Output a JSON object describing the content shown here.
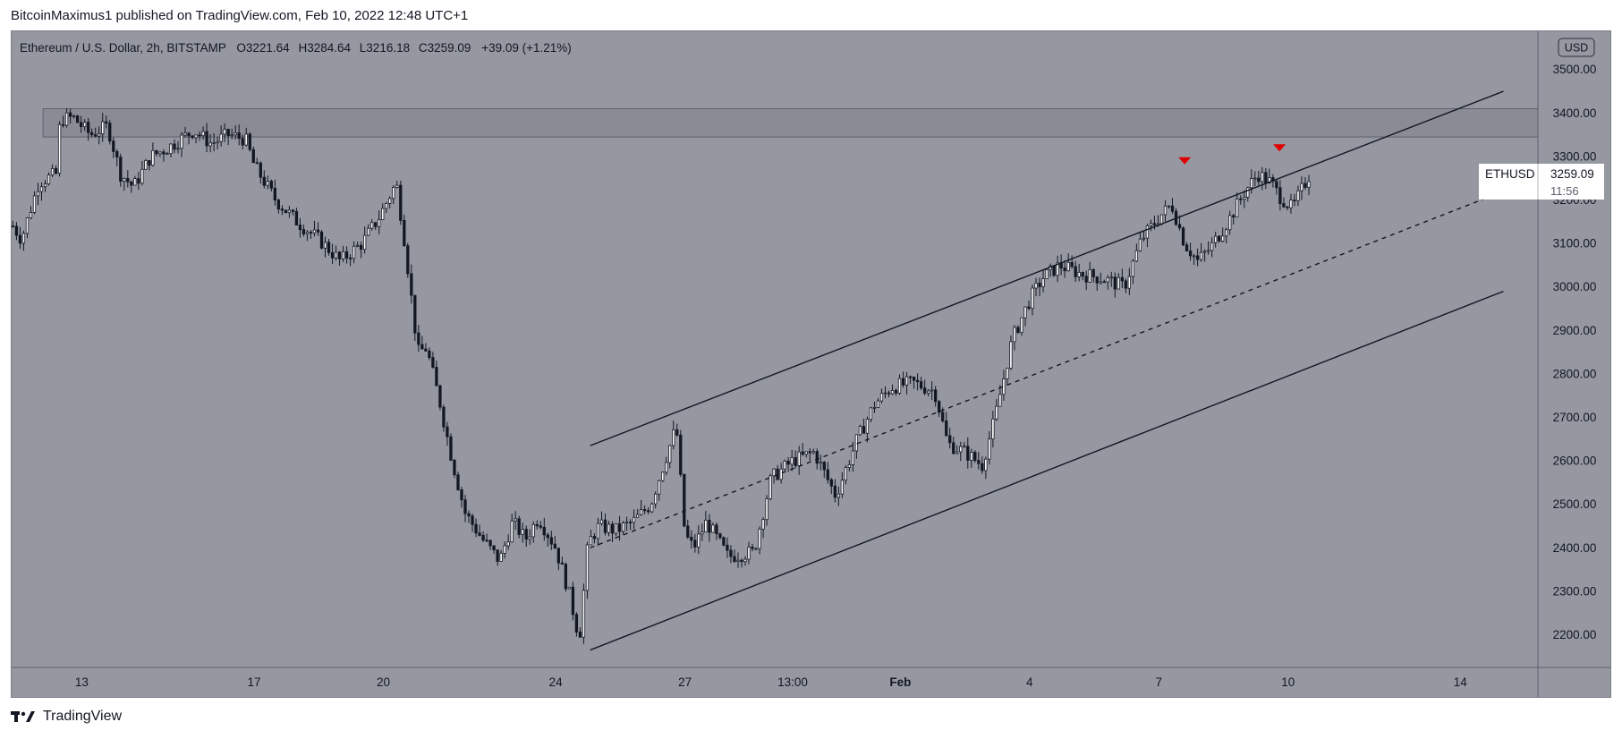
{
  "attribution": "BitcoinMaximus1 published on TradingView.com, Feb 10, 2022 12:48 UTC+1",
  "symbol_header": {
    "name": "Ethereum / U.S. Dollar, 2h, BITSTAMP",
    "o_label": "O",
    "o_value": "3221.64",
    "h_label": "H",
    "h_value": "3284.64",
    "l_label": "L",
    "l_value": "3216.18",
    "c_label": "C",
    "c_value": "3259.09",
    "change": "+39.09 (+1.21%)"
  },
  "currency_button": "USD",
  "price_label": {
    "ticker": "ETHUSD",
    "price": "3259.09",
    "countdown": "11:56"
  },
  "brand": "TradingView",
  "colors": {
    "plot_bg": "#9598a1",
    "resistance_zone": "#8a8c95",
    "line": "#131722",
    "marker": "#e00000"
  },
  "chart_data": {
    "type": "candlestick",
    "x_tick_labels": [
      "13",
      "17",
      "20",
      "24",
      "27",
      "13:00",
      "Feb",
      "4",
      "7",
      "10",
      "14"
    ],
    "x_tick_days": [
      13,
      17,
      20,
      24,
      27,
      29.5,
      32,
      35,
      38,
      41,
      45
    ],
    "y_ticks": [
      2200,
      2300,
      2400,
      2500,
      2600,
      2700,
      2800,
      2900,
      3000,
      3100,
      3200,
      3300,
      3400,
      3500
    ],
    "ylim": [
      2125,
      3590
    ],
    "xlim_days": [
      11.35,
      46.8
    ],
    "x_day_note": "days counted from Jan 1 2022 (Feb 1 = day 32)",
    "price_series_days": [
      11.4,
      11.6,
      12.0,
      12.4,
      12.5,
      12.8,
      13.2,
      13.6,
      13.9,
      14.2,
      14.6,
      15.0,
      15.3,
      15.6,
      16.0,
      16.4,
      16.8,
      17.0,
      17.5,
      18.0,
      18.5,
      19.0,
      19.5,
      19.9,
      20.3,
      20.5,
      20.8,
      21.0,
      21.3,
      21.6,
      21.9,
      22.3,
      22.7,
      23.0,
      23.3,
      23.6,
      24.0,
      24.3,
      24.55,
      24.75,
      25.0,
      25.4,
      25.8,
      26.2,
      26.6,
      26.8,
      27.0,
      27.2,
      27.5,
      28.0,
      28.6,
      29.0,
      29.5,
      30.0,
      30.5,
      31.0,
      31.4,
      31.8,
      32.3,
      32.8,
      33.1,
      33.5,
      33.9,
      34.2,
      34.6,
      35.0,
      35.3,
      35.7,
      36.2,
      36.7,
      37.2,
      37.6,
      38.0,
      38.3,
      38.6,
      38.9,
      39.2,
      39.6,
      40.0,
      40.3,
      40.6,
      40.8,
      41.1,
      41.3,
      41.5
    ],
    "price_series_values": [
      3140,
      3110,
      3240,
      3260,
      3385,
      3390,
      3350,
      3370,
      3260,
      3230,
      3300,
      3320,
      3340,
      3360,
      3330,
      3350,
      3340,
      3280,
      3200,
      3150,
      3110,
      3060,
      3100,
      3160,
      3240,
      3100,
      2850,
      2860,
      2740,
      2600,
      2480,
      2420,
      2370,
      2460,
      2420,
      2470,
      2400,
      2300,
      2190,
      2410,
      2450,
      2440,
      2460,
      2500,
      2620,
      2680,
      2430,
      2400,
      2460,
      2380,
      2390,
      2560,
      2600,
      2620,
      2520,
      2650,
      2730,
      2770,
      2780,
      2760,
      2640,
      2620,
      2590,
      2700,
      2880,
      2970,
      3020,
      3050,
      3030,
      3020,
      3000,
      3110,
      3160,
      3190,
      3100,
      3060,
      3090,
      3150,
      3220,
      3260,
      3240,
      3210,
      3180,
      3220,
      3259.09
    ],
    "resistance_zone": [
      3345,
      3410
    ],
    "channel_upper": {
      "start": [
        24.8,
        2635
      ],
      "end": [
        46.0,
        3450
      ]
    },
    "channel_lower": {
      "start": [
        24.8,
        2165
      ],
      "end": [
        46.0,
        2990
      ]
    },
    "channel_middle_dashed": {
      "start": [
        24.8,
        2400
      ],
      "end": [
        46.0,
        3220
      ]
    },
    "markers": [
      {
        "type": "triangle-down",
        "day": 38.6,
        "value": 3290
      },
      {
        "type": "triangle-down",
        "day": 40.8,
        "value": 3320
      }
    ],
    "last_price": 3259.09,
    "series": [
      {
        "name": "ETHUSD"
      }
    ]
  }
}
